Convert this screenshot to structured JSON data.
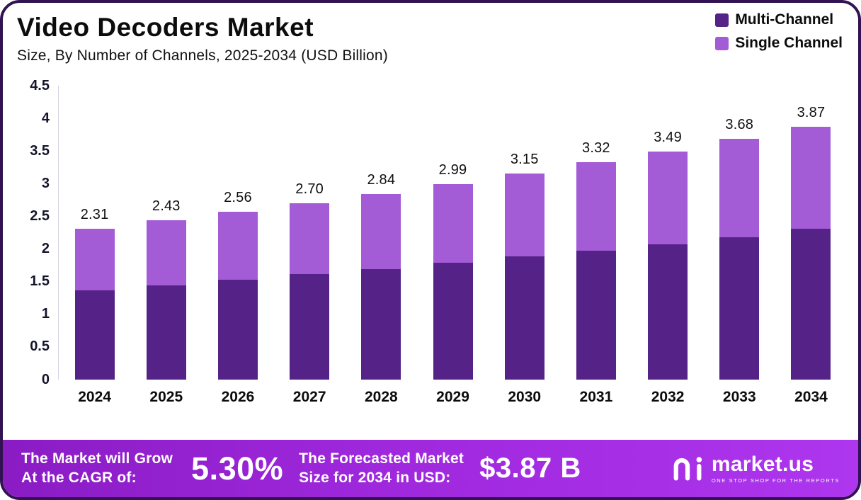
{
  "title": "Video Decoders Market",
  "subtitle": "Size, By Number of Channels, 2025-2034 (USD Billion)",
  "legend": [
    {
      "label": "Multi-Channel",
      "color": "#552287"
    },
    {
      "label": "Single Channel",
      "color": "#A35BD6"
    }
  ],
  "chart_data": {
    "type": "bar",
    "stacked": true,
    "title": "Video Decoders Market",
    "subtitle": "Size, By Number of Channels, 2025-2034 (USD Billion)",
    "unit": "USD Billion",
    "categories": [
      "2024",
      "2025",
      "2026",
      "2027",
      "2028",
      "2029",
      "2030",
      "2031",
      "2032",
      "2033",
      "2034"
    ],
    "series": [
      {
        "name": "Multi-Channel",
        "color": "#552287",
        "values": [
          1.36,
          1.44,
          1.52,
          1.61,
          1.69,
          1.78,
          1.88,
          1.97,
          2.07,
          2.18,
          2.3
        ]
      },
      {
        "name": "Single Channel",
        "color": "#A35BD6",
        "values": [
          0.95,
          0.99,
          1.04,
          1.09,
          1.15,
          1.21,
          1.27,
          1.35,
          1.42,
          1.5,
          1.57
        ]
      }
    ],
    "totals": [
      2.31,
      2.43,
      2.56,
      2.7,
      2.84,
      2.99,
      3.15,
      3.32,
      3.49,
      3.68,
      3.87
    ],
    "total_labels": [
      "2.31",
      "2.43",
      "2.56",
      "2.70",
      "2.84",
      "2.99",
      "3.15",
      "3.32",
      "3.49",
      "3.68",
      "3.87"
    ],
    "ylim": [
      0,
      4.5
    ],
    "ytick_labels": [
      "0",
      "0.5",
      "1",
      "1.5",
      "2",
      "2.5",
      "3",
      "3.5",
      "4",
      "4.5"
    ],
    "grid": false,
    "legend_position": "top-right"
  },
  "banner": {
    "growth_label_line1": "The Market will Grow",
    "growth_label_line2": "At the CAGR of:",
    "cagr_value": "5.30%",
    "forecast_label_line1": "The Forecasted Market",
    "forecast_label_line2": "Size for 2034 in USD:",
    "forecast_value": "$3.87 B",
    "brand_name": "market.us",
    "brand_tagline": "ONE STOP SHOP FOR THE REPORTS"
  }
}
